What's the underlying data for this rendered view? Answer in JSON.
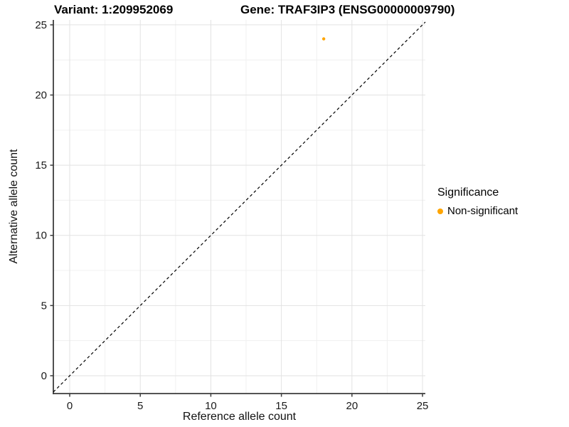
{
  "chart_data": {
    "type": "scatter",
    "titles": {
      "left": "Variant: 1:209952069",
      "right": "Gene: TRAF3IP3 (ENSG00000009790)"
    },
    "xlabel": "Reference allele count",
    "ylabel": "Alternative allele count",
    "xlim": [
      -1.16,
      25.2
    ],
    "ylim": [
      -1.27,
      25.35
    ],
    "x_ticks": [
      0,
      5,
      10,
      15,
      20,
      25
    ],
    "y_ticks": [
      0,
      5,
      10,
      15,
      20,
      25
    ],
    "x_minor_ticks": [
      2.5,
      7.5,
      12.5,
      17.5,
      22.5
    ],
    "y_minor_ticks": [
      2.5,
      7.5,
      12.5,
      17.5,
      22.5
    ],
    "grid": "major+minor",
    "points": [
      {
        "x": 18,
        "y": 24,
        "series": "Non-significant"
      }
    ],
    "reference_line": {
      "slope": 1,
      "intercept": 0,
      "style": "dashed"
    },
    "legend": {
      "title": "Significance",
      "position": "right",
      "entries": [
        {
          "label": "Non-significant",
          "color": "#FFA500"
        }
      ]
    },
    "colors": {
      "point": "#FFA500",
      "grid_major": "#E2E2E2",
      "grid_minor": "#F0F0F0",
      "axis_line": "#3C3C3C",
      "tick_label": "#1a1a1a",
      "reference_line": "#000000"
    }
  }
}
